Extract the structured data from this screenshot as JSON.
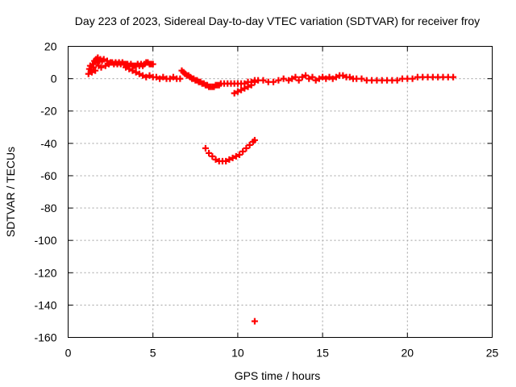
{
  "chart_data": {
    "type": "scatter",
    "title": "Day 223 of 2023, Sidereal Day-to-day VTEC variation (SDTVAR) for receiver froy",
    "xlabel": "GPS time / hours",
    "ylabel": "SDTVAR / TECUs",
    "xlim": [
      0,
      25
    ],
    "ylim": [
      -160,
      20
    ],
    "x_ticks": [
      0,
      5,
      10,
      15,
      20,
      25
    ],
    "y_ticks": [
      20,
      0,
      -20,
      -40,
      -60,
      -80,
      -100,
      -120,
      -140,
      -160
    ],
    "grid": true,
    "legend": "none",
    "marker": "plus",
    "color": "#ff0000",
    "series": [
      {
        "points": [
          [
            1.2,
            3
          ],
          [
            1.25,
            6
          ],
          [
            1.3,
            8
          ],
          [
            1.35,
            5
          ],
          [
            1.4,
            4
          ],
          [
            1.45,
            9
          ],
          [
            1.5,
            7
          ],
          [
            1.55,
            11
          ],
          [
            1.6,
            5
          ],
          [
            1.65,
            12
          ],
          [
            1.7,
            10
          ],
          [
            1.75,
            13
          ],
          [
            1.8,
            8
          ],
          [
            1.85,
            11
          ],
          [
            1.9,
            12
          ],
          [
            1.95,
            7
          ],
          [
            2.0,
            11
          ],
          [
            2.1,
            12
          ],
          [
            2.2,
            8
          ],
          [
            2.3,
            11
          ],
          [
            2.4,
            9
          ],
          [
            2.5,
            10
          ],
          [
            2.6,
            10
          ],
          [
            2.7,
            9
          ],
          [
            2.8,
            10
          ],
          [
            2.9,
            9
          ],
          [
            3.0,
            10
          ],
          [
            3.1,
            9
          ],
          [
            3.2,
            10
          ],
          [
            3.3,
            9
          ],
          [
            3.4,
            9
          ],
          [
            3.5,
            9
          ],
          [
            3.6,
            8
          ],
          [
            3.7,
            9
          ],
          [
            3.8,
            8
          ],
          [
            3.9,
            8
          ],
          [
            4.0,
            8
          ],
          [
            4.1,
            9
          ],
          [
            4.2,
            8
          ],
          [
            4.3,
            9
          ],
          [
            4.4,
            8
          ],
          [
            4.5,
            9
          ],
          [
            4.6,
            10
          ],
          [
            4.7,
            10
          ],
          [
            4.8,
            9
          ],
          [
            4.9,
            9
          ],
          [
            5.0,
            9
          ],
          [
            3.4,
            7
          ],
          [
            3.6,
            6
          ],
          [
            3.8,
            5
          ],
          [
            4.0,
            4
          ],
          [
            4.2,
            3
          ],
          [
            4.4,
            2
          ],
          [
            4.6,
            1
          ],
          [
            4.8,
            2
          ],
          [
            5.0,
            1
          ],
          [
            5.2,
            1
          ],
          [
            5.4,
            0
          ],
          [
            5.6,
            1
          ],
          [
            5.8,
            0
          ],
          [
            6.0,
            0
          ],
          [
            6.2,
            1
          ],
          [
            6.4,
            0
          ],
          [
            6.6,
            0
          ],
          [
            6.7,
            5
          ],
          [
            6.8,
            4
          ],
          [
            6.9,
            3
          ],
          [
            7.0,
            2
          ],
          [
            7.1,
            2
          ],
          [
            7.2,
            1
          ],
          [
            7.3,
            0
          ],
          [
            7.4,
            0
          ],
          [
            7.5,
            -1
          ],
          [
            7.6,
            -1
          ],
          [
            7.7,
            -2
          ],
          [
            7.8,
            -2
          ],
          [
            7.9,
            -3
          ],
          [
            8.0,
            -3
          ],
          [
            8.1,
            -4
          ],
          [
            8.2,
            -4
          ],
          [
            8.3,
            -5
          ],
          [
            8.4,
            -5
          ],
          [
            8.5,
            -5
          ],
          [
            8.6,
            -5
          ],
          [
            8.7,
            -4
          ],
          [
            8.8,
            -4
          ],
          [
            8.9,
            -4
          ],
          [
            9.0,
            -3
          ],
          [
            9.2,
            -3
          ],
          [
            9.4,
            -3
          ],
          [
            9.6,
            -3
          ],
          [
            9.8,
            -3
          ],
          [
            10.0,
            -3
          ],
          [
            10.2,
            -3
          ],
          [
            10.4,
            -3
          ],
          [
            10.6,
            -2
          ],
          [
            10.8,
            -2
          ],
          [
            11.0,
            -1
          ],
          [
            9.8,
            -9
          ],
          [
            10.0,
            -8
          ],
          [
            10.2,
            -7
          ],
          [
            10.4,
            -6
          ],
          [
            10.6,
            -5
          ],
          [
            10.8,
            -4
          ],
          [
            11.0,
            -2
          ],
          [
            11.2,
            -1
          ],
          [
            11.5,
            -1
          ],
          [
            11.8,
            -2
          ],
          [
            12.1,
            -2
          ],
          [
            12.4,
            -1
          ],
          [
            12.7,
            0
          ],
          [
            13.0,
            -1
          ],
          [
            13.2,
            0
          ],
          [
            13.4,
            1
          ],
          [
            13.6,
            -1
          ],
          [
            13.8,
            1
          ],
          [
            14.0,
            2
          ],
          [
            14.2,
            0
          ],
          [
            14.4,
            1
          ],
          [
            14.6,
            -1
          ],
          [
            14.8,
            0
          ],
          [
            15.0,
            1
          ],
          [
            15.2,
            0
          ],
          [
            15.4,
            1
          ],
          [
            15.6,
            0
          ],
          [
            15.8,
            1
          ],
          [
            16.0,
            2
          ],
          [
            16.2,
            2
          ],
          [
            16.4,
            1
          ],
          [
            16.6,
            1
          ],
          [
            16.8,
            0
          ],
          [
            17.0,
            0
          ],
          [
            17.3,
            0
          ],
          [
            17.6,
            -1
          ],
          [
            17.9,
            -1
          ],
          [
            18.2,
            -1
          ],
          [
            18.5,
            -1
          ],
          [
            18.8,
            -1
          ],
          [
            19.1,
            -1
          ],
          [
            19.4,
            -1
          ],
          [
            19.7,
            0
          ],
          [
            20.0,
            0
          ],
          [
            20.3,
            0
          ],
          [
            20.6,
            1
          ],
          [
            20.9,
            1
          ],
          [
            21.2,
            1
          ],
          [
            21.5,
            1
          ],
          [
            21.8,
            1
          ],
          [
            22.1,
            1
          ],
          [
            22.4,
            1
          ],
          [
            22.7,
            1
          ],
          [
            8.1,
            -43
          ],
          [
            8.3,
            -46
          ],
          [
            8.5,
            -48
          ],
          [
            8.7,
            -50
          ],
          [
            8.9,
            -51
          ],
          [
            9.1,
            -51
          ],
          [
            9.3,
            -51
          ],
          [
            9.5,
            -50
          ],
          [
            9.7,
            -49
          ],
          [
            9.9,
            -48
          ],
          [
            10.1,
            -47
          ],
          [
            10.3,
            -45
          ],
          [
            10.5,
            -43
          ],
          [
            10.7,
            -41
          ],
          [
            10.9,
            -39
          ],
          [
            11.0,
            -38
          ],
          [
            11.0,
            -150
          ]
        ]
      }
    ]
  }
}
